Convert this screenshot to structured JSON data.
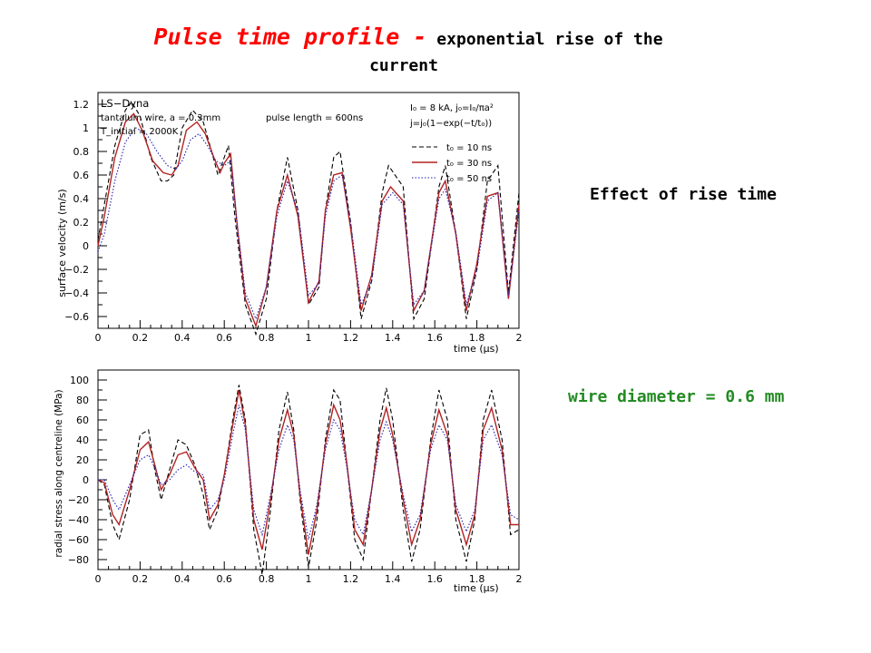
{
  "title": {
    "main": "Pulse time profile -",
    "rest": " exponential rise of the",
    "line2": "current"
  },
  "side_labels": {
    "rise": "Effect of rise time",
    "wire": "wire diameter = 0.6 mm"
  },
  "colors": {
    "title": "#ff0000",
    "wire_label": "#228b22",
    "series_10ns": "#000000",
    "series_30ns": "#b22222",
    "series_50ns": "#1f1fb4"
  },
  "chart_data": [
    {
      "type": "line",
      "ylabel": "surface velocity (m/s)",
      "xlabel": "time (μs)",
      "xlim": [
        0,
        2
      ],
      "ylim": [
        -0.7,
        1.3
      ],
      "x_ticks": [
        "0",
        "0.2",
        "0.4",
        "0.6",
        "0.8",
        "1",
        "1.2",
        "1.4",
        "1.6",
        "1.8",
        "2"
      ],
      "y_ticks": [
        "1.2",
        "1",
        "0.8",
        "0.6",
        "0.4",
        "0.2",
        "0",
        "−0.2",
        "−0.4",
        "−0.6"
      ],
      "annotations": {
        "software": "LS−Dyna",
        "wire": "tantalum wire, a = 0.3mm",
        "pulse": "pulse length = 600ns",
        "tinitial": "T_initial = 2000K",
        "current": "I₀ = 8 kA, j₀=I₀/πa²",
        "formula": "j=j₀(1−exp(−t/t₀))"
      },
      "legend": [
        "t₀ = 10 ns",
        "t₀ = 30 ns",
        "t₀ = 50 ns"
      ],
      "legend_position": "top-right",
      "series": [
        {
          "name": "t₀ = 10 ns",
          "style": "dashed",
          "x": [
            0,
            0.03,
            0.08,
            0.13,
            0.16,
            0.2,
            0.25,
            0.3,
            0.33,
            0.36,
            0.4,
            0.45,
            0.5,
            0.54,
            0.57,
            0.6,
            0.62,
            0.65,
            0.7,
            0.75,
            0.8,
            0.85,
            0.9,
            0.95,
            1.0,
            1.05,
            1.08,
            1.12,
            1.15,
            1.2,
            1.25,
            1.3,
            1.35,
            1.38,
            1.45,
            1.5,
            1.55,
            1.62,
            1.65,
            1.7,
            1.75,
            1.8,
            1.85,
            1.9,
            1.95,
            2.0
          ],
          "y": [
            0.05,
            0.35,
            0.85,
            1.15,
            1.22,
            1.1,
            0.75,
            0.55,
            0.55,
            0.6,
            1.0,
            1.15,
            1.05,
            0.8,
            0.6,
            0.75,
            0.85,
            0.25,
            -0.5,
            -0.75,
            -0.45,
            0.3,
            0.75,
            0.3,
            -0.5,
            -0.35,
            0.3,
            0.75,
            0.8,
            0.2,
            -0.62,
            -0.3,
            0.45,
            0.68,
            0.5,
            -0.62,
            -0.45,
            0.5,
            0.68,
            0.1,
            -0.62,
            -0.2,
            0.55,
            0.68,
            -0.4,
            0.45
          ]
        },
        {
          "name": "t₀ = 30 ns",
          "style": "solid",
          "x": [
            0,
            0.03,
            0.08,
            0.13,
            0.17,
            0.21,
            0.26,
            0.31,
            0.35,
            0.38,
            0.42,
            0.47,
            0.51,
            0.55,
            0.58,
            0.6,
            0.63,
            0.66,
            0.7,
            0.75,
            0.8,
            0.85,
            0.9,
            0.95,
            1.0,
            1.05,
            1.08,
            1.12,
            1.16,
            1.2,
            1.25,
            1.3,
            1.35,
            1.39,
            1.45,
            1.5,
            1.55,
            1.62,
            1.65,
            1.7,
            1.75,
            1.8,
            1.85,
            1.9,
            1.95,
            2.0
          ],
          "y": [
            0.0,
            0.25,
            0.75,
            1.05,
            1.12,
            0.98,
            0.72,
            0.62,
            0.6,
            0.68,
            0.98,
            1.05,
            0.95,
            0.75,
            0.62,
            0.7,
            0.78,
            0.2,
            -0.45,
            -0.68,
            -0.35,
            0.3,
            0.6,
            0.25,
            -0.48,
            -0.3,
            0.3,
            0.6,
            0.62,
            0.15,
            -0.55,
            -0.25,
            0.38,
            0.5,
            0.38,
            -0.55,
            -0.38,
            0.45,
            0.55,
            0.1,
            -0.55,
            -0.15,
            0.42,
            0.45,
            -0.45,
            0.35
          ]
        },
        {
          "name": "t₀ = 50 ns",
          "style": "dotted",
          "x": [
            0,
            0.03,
            0.08,
            0.13,
            0.18,
            0.23,
            0.28,
            0.33,
            0.37,
            0.4,
            0.44,
            0.48,
            0.52,
            0.56,
            0.6,
            0.63,
            0.66,
            0.7,
            0.75,
            0.8,
            0.85,
            0.9,
            0.95,
            1.0,
            1.05,
            1.08,
            1.12,
            1.16,
            1.2,
            1.25,
            1.3,
            1.35,
            1.4,
            1.45,
            1.5,
            1.55,
            1.62,
            1.65,
            1.7,
            1.75,
            1.8,
            1.85,
            1.9,
            1.95,
            2.0
          ],
          "y": [
            -0.05,
            0.1,
            0.55,
            0.88,
            1.0,
            0.95,
            0.8,
            0.68,
            0.65,
            0.72,
            0.9,
            0.95,
            0.85,
            0.72,
            0.68,
            0.72,
            0.2,
            -0.4,
            -0.62,
            -0.35,
            0.25,
            0.55,
            0.3,
            -0.42,
            -0.32,
            0.25,
            0.55,
            0.6,
            0.2,
            -0.5,
            -0.3,
            0.35,
            0.45,
            0.35,
            -0.5,
            -0.38,
            0.4,
            0.48,
            0.12,
            -0.5,
            -0.2,
            0.38,
            0.45,
            -0.42,
            0.3
          ]
        }
      ]
    },
    {
      "type": "line",
      "ylabel": "radial stress along centreline (MPa)",
      "xlabel": "time (μs)",
      "xlim": [
        0,
        2
      ],
      "ylim": [
        -90,
        110
      ],
      "x_ticks": [
        "0",
        "0.2",
        "0.4",
        "0.6",
        "0.8",
        "1",
        "1.2",
        "1.4",
        "1.6",
        "1.8",
        "2"
      ],
      "y_ticks": [
        "100",
        "80",
        "60",
        "40",
        "20",
        "0",
        "−20",
        "−40",
        "−60",
        "−80"
      ],
      "series": [
        {
          "name": "t₀ = 10 ns",
          "style": "dashed",
          "x": [
            0,
            0.03,
            0.07,
            0.1,
            0.15,
            0.2,
            0.24,
            0.27,
            0.3,
            0.34,
            0.38,
            0.42,
            0.46,
            0.5,
            0.53,
            0.57,
            0.6,
            0.64,
            0.67,
            0.7,
            0.74,
            0.78,
            0.82,
            0.86,
            0.9,
            0.93,
            0.96,
            1.0,
            1.04,
            1.08,
            1.12,
            1.15,
            1.18,
            1.22,
            1.26,
            1.3,
            1.34,
            1.37,
            1.4,
            1.45,
            1.49,
            1.53,
            1.58,
            1.62,
            1.66,
            1.7,
            1.75,
            1.79,
            1.83,
            1.87,
            1.92,
            1.96,
            2.0
          ],
          "y": [
            0,
            -5,
            -45,
            -60,
            -20,
            45,
            50,
            10,
            -20,
            10,
            40,
            35,
            15,
            -15,
            -50,
            -30,
            5,
            60,
            95,
            60,
            -50,
            -95,
            -30,
            50,
            88,
            50,
            -20,
            -88,
            -40,
            40,
            90,
            80,
            20,
            -60,
            -80,
            -10,
            60,
            92,
            60,
            -30,
            -82,
            -50,
            40,
            90,
            60,
            -40,
            -82,
            -40,
            60,
            90,
            40,
            -55,
            -50
          ]
        },
        {
          "name": "t₀ = 30 ns",
          "style": "solid",
          "x": [
            0,
            0.03,
            0.07,
            0.1,
            0.15,
            0.2,
            0.24,
            0.27,
            0.3,
            0.34,
            0.38,
            0.42,
            0.46,
            0.5,
            0.53,
            0.57,
            0.6,
            0.64,
            0.67,
            0.7,
            0.74,
            0.78,
            0.82,
            0.86,
            0.9,
            0.93,
            0.96,
            1.0,
            1.04,
            1.08,
            1.12,
            1.15,
            1.18,
            1.22,
            1.26,
            1.3,
            1.34,
            1.37,
            1.4,
            1.45,
            1.49,
            1.53,
            1.58,
            1.62,
            1.66,
            1.7,
            1.75,
            1.79,
            1.83,
            1.87,
            1.92,
            1.96,
            2.0
          ],
          "y": [
            0,
            -3,
            -35,
            -45,
            -10,
            30,
            38,
            15,
            -10,
            5,
            25,
            28,
            12,
            0,
            -40,
            -25,
            5,
            55,
            90,
            55,
            -40,
            -70,
            -20,
            40,
            70,
            45,
            -15,
            -75,
            -30,
            35,
            75,
            60,
            20,
            -50,
            -65,
            -10,
            50,
            72,
            45,
            -20,
            -65,
            -40,
            35,
            70,
            45,
            -30,
            -65,
            -35,
            50,
            72,
            30,
            -45,
            -45
          ]
        },
        {
          "name": "t₀ = 50 ns",
          "style": "dotted",
          "x": [
            0,
            0.03,
            0.07,
            0.1,
            0.15,
            0.2,
            0.24,
            0.27,
            0.3,
            0.34,
            0.38,
            0.42,
            0.46,
            0.5,
            0.53,
            0.57,
            0.6,
            0.64,
            0.67,
            0.7,
            0.74,
            0.78,
            0.82,
            0.86,
            0.9,
            0.93,
            0.96,
            1.0,
            1.04,
            1.08,
            1.12,
            1.15,
            1.18,
            1.22,
            1.26,
            1.3,
            1.34,
            1.37,
            1.4,
            1.45,
            1.49,
            1.53,
            1.58,
            1.62,
            1.66,
            1.7,
            1.75,
            1.79,
            1.83,
            1.87,
            1.92,
            1.96,
            2.0
          ],
          "y": [
            0,
            0,
            -20,
            -30,
            -5,
            20,
            25,
            12,
            -5,
            0,
            10,
            15,
            8,
            5,
            -30,
            -20,
            0,
            45,
            75,
            50,
            -30,
            -55,
            -15,
            30,
            55,
            40,
            -10,
            -60,
            -25,
            30,
            60,
            50,
            15,
            -40,
            -55,
            -10,
            40,
            58,
            40,
            -15,
            -52,
            -35,
            30,
            55,
            40,
            -25,
            -52,
            -30,
            40,
            55,
            25,
            -35,
            -40
          ]
        }
      ]
    }
  ]
}
